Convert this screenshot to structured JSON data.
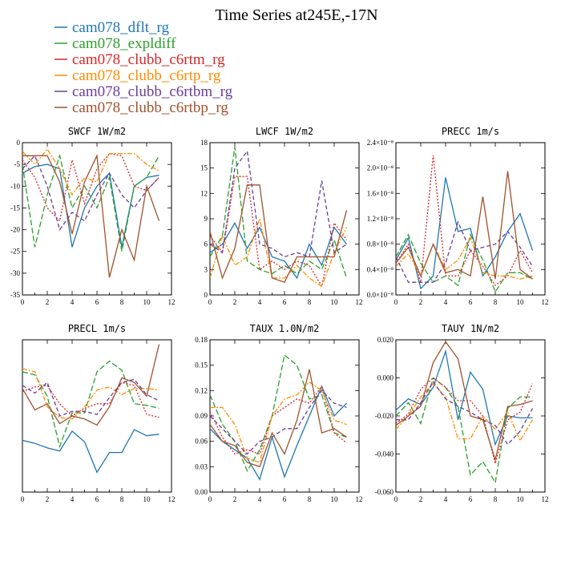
{
  "figure": {
    "title": "Time Series at245E,-17N"
  },
  "legend": [
    {
      "name": "cam078_dflt_rg",
      "color": "#1f77b4"
    },
    {
      "name": "cam078_expldiff",
      "color": "#2ca02c"
    },
    {
      "name": "cam078_clubb_c6rtm_rg",
      "color": "#d62728"
    },
    {
      "name": "cam078_clubb_c6rtp_rg",
      "color": "#ff8c00"
    },
    {
      "name": "cam078_clubb_c6rtbm_rg",
      "color": "#6a3d9a"
    },
    {
      "name": "cam078_clubb_c6rtbp_rg",
      "color": "#a0522d"
    }
  ],
  "chart_data": [
    {
      "type": "line",
      "title": "SWCF  1W/m2",
      "x": [
        0,
        1,
        2,
        3,
        4,
        5,
        6,
        7,
        8,
        9,
        10,
        11
      ],
      "xlim": [
        0,
        12
      ],
      "xticks": [
        "0",
        "2",
        "4",
        "6",
        "8",
        "10",
        "12"
      ],
      "ylim": [
        -35,
        0
      ],
      "yticks": [
        "-35",
        "-30",
        "-25",
        "-20",
        "-15",
        "-10",
        "-5",
        "0"
      ],
      "series": [
        {
          "name": "cam078_dflt_rg",
          "dash": "solid",
          "values": [
            -7,
            -5.5,
            -5,
            -6,
            -24,
            -15,
            -10,
            -7,
            -24,
            -10,
            -8,
            -7.5
          ]
        },
        {
          "name": "cam078_expldiff",
          "dash": "longdash",
          "values": [
            -5,
            -24,
            -12,
            -3,
            -15,
            -10,
            -15,
            -8,
            -25,
            -10,
            -8,
            -3
          ]
        },
        {
          "name": "cam078_clubb_c6rtm_rg",
          "dash": "dot",
          "values": [
            -4,
            -8,
            -15,
            -18,
            -4,
            -14,
            -6,
            -2.5,
            -3,
            -10,
            -11,
            -8
          ]
        },
        {
          "name": "cam078_clubb_c6rtp_rg",
          "dash": "dashdot",
          "values": [
            -2,
            -5,
            -1.5,
            -6,
            -12,
            -8,
            -9,
            -2.5,
            -2.5,
            -2.5,
            -5,
            -6.5
          ]
        },
        {
          "name": "cam078_clubb_c6rtbm_rg",
          "dash": "dash",
          "values": [
            -6,
            -3,
            -10,
            -20,
            -16,
            -18,
            -12,
            -7,
            -12,
            -15,
            -11,
            -8
          ]
        },
        {
          "name": "cam078_clubb_c6rtbp_rg",
          "dash": "solid",
          "values": [
            -3,
            -3,
            -3,
            -9,
            -21,
            -9,
            -3,
            -31,
            -20,
            -27,
            -10,
            -18
          ]
        }
      ]
    },
    {
      "type": "line",
      "title": "LWCF  1W/m2",
      "x": [
        0,
        1,
        2,
        3,
        4,
        5,
        6,
        7,
        8,
        9,
        10,
        11
      ],
      "xlim": [
        0,
        12
      ],
      "xticks": [
        "0",
        "2",
        "4",
        "6",
        "8",
        "10",
        "12"
      ],
      "ylim": [
        0,
        18
      ],
      "yticks": [
        "0",
        "3",
        "6",
        "9",
        "12",
        "15",
        "18"
      ],
      "series": [
        {
          "name": "cam078_dflt_rg",
          "dash": "solid",
          "values": [
            5,
            6,
            8.5,
            5.5,
            8,
            4.5,
            4,
            2,
            6,
            3.5,
            8,
            6
          ]
        },
        {
          "name": "cam078_expldiff",
          "dash": "longdash",
          "values": [
            4.5,
            7,
            17.5,
            4,
            3,
            2.5,
            3.5,
            2.5,
            4,
            3,
            6.5,
            2
          ]
        },
        {
          "name": "cam078_clubb_c6rtm_rg",
          "dash": "dot",
          "values": [
            7,
            5,
            14,
            14,
            3,
            4,
            3,
            4,
            3.5,
            1,
            8.5,
            6.5
          ]
        },
        {
          "name": "cam078_clubb_c6rtp_rg",
          "dash": "dashdot",
          "values": [
            2,
            7,
            3.5,
            4.5,
            9,
            2,
            2,
            3.5,
            2,
            1,
            5,
            8
          ]
        },
        {
          "name": "cam078_clubb_c6rtbm_rg",
          "dash": "dash",
          "values": [
            6,
            5,
            15,
            17,
            6,
            5.5,
            4.5,
            5,
            4.5,
            13.5,
            5,
            6
          ]
        },
        {
          "name": "cam078_clubb_c6rtbp_rg",
          "dash": "solid",
          "values": [
            7.5,
            2,
            5.5,
            13,
            13,
            2,
            1.5,
            4.5,
            4.5,
            4.5,
            4.5,
            10
          ]
        }
      ]
    },
    {
      "type": "line",
      "title": "PRECC  1m/s",
      "x": [
        0,
        1,
        2,
        3,
        4,
        5,
        6,
        7,
        8,
        9,
        10,
        11
      ],
      "xlim": [
        0,
        12
      ],
      "xticks": [
        "0",
        "2",
        "4",
        "6",
        "8",
        "10",
        "12"
      ],
      "ylim": [
        0,
        2.4
      ],
      "yticks": [
        "0.0×10⁻⁸",
        "0.4×10⁻⁸",
        "0.8×10⁻⁸",
        "1.2×10⁻⁸",
        "1.6×10⁻⁸",
        "2.0×10⁻⁸",
        "2.4×10⁻⁸"
      ],
      "series": [
        {
          "name": "cam078_dflt_rg",
          "dash": "solid",
          "values": [
            0.55,
            0.9,
            0.1,
            0.3,
            1.85,
            1.0,
            1.05,
            0.3,
            0.6,
            1.0,
            1.28,
            0.7
          ]
        },
        {
          "name": "cam078_expldiff",
          "dash": "longdash",
          "values": [
            0.6,
            0.95,
            0.5,
            0.2,
            0.3,
            0.15,
            0.95,
            0.55,
            0.05,
            0.35,
            0.35,
            0.25
          ]
        },
        {
          "name": "cam078_clubb_c6rtm_rg",
          "dash": "dot",
          "values": [
            0.5,
            0.8,
            0.2,
            2.2,
            0.3,
            0.3,
            0.7,
            0.45,
            0.15,
            0.3,
            0.7,
            0.35
          ]
        },
        {
          "name": "cam078_clubb_c6rtp_rg",
          "dash": "dashdot",
          "values": [
            0.45,
            0.65,
            0.3,
            0.8,
            0.4,
            0.55,
            0.9,
            0.35,
            0.3,
            0.3,
            0.25,
            0.3
          ]
        },
        {
          "name": "cam078_clubb_c6rtbm_rg",
          "dash": "dash",
          "values": [
            0.6,
            0.2,
            0.2,
            0.2,
            0.5,
            1.15,
            0.7,
            0.75,
            0.8,
            1.0,
            0.75,
            0.45
          ]
        },
        {
          "name": "cam078_clubb_c6rtbp_rg",
          "dash": "solid",
          "values": [
            0.5,
            0.75,
            0.3,
            0.8,
            0.35,
            0.4,
            0.3,
            1.55,
            0.25,
            1.95,
            0.4,
            0.25
          ]
        }
      ]
    },
    {
      "type": "line",
      "title": "PRECL  1m/s",
      "x": [
        0,
        1,
        2,
        3,
        4,
        5,
        6,
        7,
        8,
        9,
        10,
        11
      ],
      "xlim": [
        0,
        12
      ],
      "xticks": [
        "0",
        "2",
        "4",
        "6",
        "8",
        "10",
        "12"
      ],
      "ylim": [
        0,
        10
      ],
      "yticks": [],
      "series": [
        {
          "name": "cam078_dflt_rg",
          "dash": "solid",
          "values": [
            3.4,
            3.2,
            2.9,
            2.7,
            4.0,
            3.3,
            1.3,
            2.6,
            2.6,
            4.1,
            3.7,
            3.8
          ]
        },
        {
          "name": "cam078_expldiff",
          "dash": "longdash",
          "values": [
            7.9,
            7.7,
            6.3,
            3.0,
            5.2,
            5.2,
            7.9,
            8.6,
            8.0,
            5.8,
            5.7,
            5.5
          ]
        },
        {
          "name": "cam078_clubb_c6rtm_rg",
          "dash": "dot",
          "values": [
            6.6,
            6.9,
            7.0,
            5.8,
            5.0,
            5.5,
            5.8,
            5.8,
            7.2,
            7.0,
            5.1,
            4.9
          ]
        },
        {
          "name": "cam078_clubb_c6rtp_rg",
          "dash": "dashdot",
          "values": [
            8.1,
            7.9,
            5.6,
            4.9,
            4.8,
            5.6,
            6.7,
            6.9,
            6.4,
            6.8,
            6.8,
            6.7
          ]
        },
        {
          "name": "cam078_clubb_c6rtbm_rg",
          "dash": "dash",
          "values": [
            7.0,
            6.5,
            7.2,
            5.0,
            5.3,
            5.3,
            5.1,
            6.2,
            7.2,
            7.4,
            6.4,
            6.0
          ]
        },
        {
          "name": "cam078_clubb_c6rtbp_rg",
          "dash": "solid",
          "values": [
            6.8,
            5.4,
            5.8,
            4.5,
            5.0,
            4.8,
            4.4,
            5.6,
            7.5,
            7.2,
            6.3,
            9.7
          ]
        }
      ]
    },
    {
      "type": "line",
      "title": "TAUX  1.0N/m2",
      "x": [
        0,
        1,
        2,
        3,
        4,
        5,
        6,
        7,
        8,
        9,
        10,
        11
      ],
      "xlim": [
        0,
        12
      ],
      "xticks": [
        "0",
        "2",
        "4",
        "6",
        "8",
        "10",
        "12"
      ],
      "ylim": [
        0,
        0.18
      ],
      "yticks": [
        "0.00",
        "0.03",
        "0.06",
        "0.09",
        "0.12",
        "0.15",
        "0.18"
      ],
      "series": [
        {
          "name": "cam078_dflt_rg",
          "dash": "solid",
          "values": [
            0.075,
            0.06,
            0.05,
            0.04,
            0.015,
            0.065,
            0.018,
            0.055,
            0.09,
            0.125,
            0.09,
            0.105
          ]
        },
        {
          "name": "cam078_expldiff",
          "dash": "longdash",
          "values": [
            0.115,
            0.08,
            0.06,
            0.025,
            0.05,
            0.09,
            0.162,
            0.15,
            0.11,
            0.115,
            0.07,
            0.065
          ]
        },
        {
          "name": "cam078_clubb_c6rtm_rg",
          "dash": "dot",
          "values": [
            0.095,
            0.065,
            0.045,
            0.05,
            0.045,
            0.09,
            0.1,
            0.11,
            0.105,
            0.125,
            0.07,
            0.058
          ]
        },
        {
          "name": "cam078_clubb_c6rtp_rg",
          "dash": "dashdot",
          "values": [
            0.1,
            0.1,
            0.08,
            0.04,
            0.035,
            0.09,
            0.11,
            0.115,
            0.13,
            0.12,
            0.085,
            0.08
          ]
        },
        {
          "name": "cam078_clubb_c6rtbm_rg",
          "dash": "dash",
          "values": [
            0.09,
            0.075,
            0.06,
            0.045,
            0.06,
            0.065,
            0.075,
            0.075,
            0.1,
            0.12,
            0.105,
            0.1
          ]
        },
        {
          "name": "cam078_clubb_c6rtbp_rg",
          "dash": "solid",
          "values": [
            0.08,
            0.06,
            0.055,
            0.035,
            0.03,
            0.07,
            0.045,
            0.085,
            0.145,
            0.07,
            0.075,
            0.065
          ]
        }
      ]
    },
    {
      "type": "line",
      "title": "TAUY  1N/m2",
      "x": [
        0,
        1,
        2,
        3,
        4,
        5,
        6,
        7,
        8,
        9,
        10,
        11
      ],
      "xlim": [
        0,
        12
      ],
      "xticks": [
        "0",
        "2",
        "4",
        "6",
        "8",
        "10",
        "12"
      ],
      "ylim": [
        -0.06,
        0.02
      ],
      "yticks": [
        "-0.060",
        "-0.040",
        "-0.020",
        "0.000",
        "0.020"
      ],
      "series": [
        {
          "name": "cam078_dflt_rg",
          "dash": "solid",
          "values": [
            -0.017,
            -0.011,
            -0.014,
            -0.005,
            0.014,
            -0.022,
            0.003,
            -0.006,
            -0.035,
            -0.02,
            -0.021,
            -0.021
          ]
        },
        {
          "name": "cam078_expldiff",
          "dash": "longdash",
          "values": [
            -0.02,
            -0.013,
            -0.024,
            0.0,
            -0.005,
            -0.015,
            -0.051,
            -0.044,
            -0.055,
            -0.016,
            -0.01,
            -0.01
          ]
        },
        {
          "name": "cam078_clubb_c6rtm_rg",
          "dash": "dot",
          "values": [
            -0.024,
            -0.019,
            -0.006,
            0.0,
            -0.005,
            -0.012,
            -0.012,
            -0.02,
            -0.045,
            -0.022,
            -0.018,
            -0.003
          ]
        },
        {
          "name": "cam078_clubb_c6rtp_rg",
          "dash": "dashdot",
          "values": [
            -0.027,
            -0.02,
            -0.01,
            -0.003,
            -0.01,
            -0.032,
            -0.032,
            -0.02,
            -0.027,
            -0.018,
            -0.033,
            -0.022
          ]
        },
        {
          "name": "cam078_clubb_c6rtbm_rg",
          "dash": "dash",
          "values": [
            -0.022,
            -0.022,
            -0.013,
            -0.002,
            -0.011,
            -0.015,
            -0.018,
            -0.022,
            -0.025,
            -0.035,
            -0.028,
            -0.016
          ]
        },
        {
          "name": "cam078_clubb_c6rtbp_rg",
          "dash": "solid",
          "values": [
            -0.025,
            -0.02,
            -0.015,
            0.008,
            0.019,
            0.01,
            -0.02,
            -0.022,
            -0.043,
            -0.015,
            -0.014,
            -0.012
          ]
        }
      ]
    }
  ]
}
